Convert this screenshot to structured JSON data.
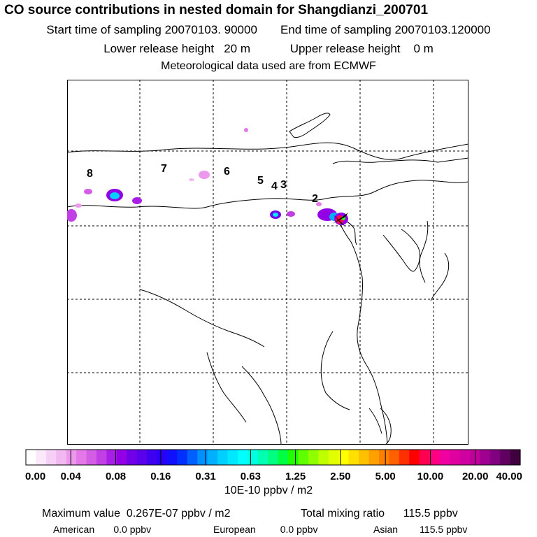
{
  "header": {
    "title": "CO  source contributions in nested domain for Shangdianzi_200701",
    "start_label": "Start time of sampling",
    "start_value": "20070103. 90000",
    "end_label": "End time of sampling",
    "end_value": "20070103.120000",
    "lower_label": "Lower release height",
    "lower_value": "20 m",
    "upper_label": "Upper release height",
    "upper_value": "0 m",
    "met": "Meteorological data used are from ECMWF"
  },
  "map": {
    "point_labels": [
      "2",
      "3",
      "4",
      "5",
      "6",
      "7",
      "8"
    ],
    "station": "Shangdianzi"
  },
  "colorbar": {
    "tick_labels": [
      "0.00",
      "0.04",
      "0.08",
      "0.16",
      "0.31",
      "0.63",
      "1.25",
      "2.50",
      "5.00",
      "10.00",
      "20.00",
      "40.00"
    ],
    "unit": "10E-10 ppbv / m2",
    "colors": [
      "#ffffff",
      "#fbe8fb",
      "#f7d0f7",
      "#f2b8f2",
      "#ec98ec",
      "#e478e8",
      "#d45de6",
      "#c040e6",
      "#a81ee6",
      "#9400e6",
      "#7000e8",
      "#5a00ea",
      "#4000f0",
      "#2a00f8",
      "#1010ff",
      "#0030ff",
      "#0060ff",
      "#0090ff",
      "#00b0ff",
      "#00d0ff",
      "#00e8ff",
      "#00ffff",
      "#00ffe0",
      "#00ffb0",
      "#00ff80",
      "#00ff40",
      "#20ff00",
      "#60ff00",
      "#90ff00",
      "#c0ff00",
      "#e0ff00",
      "#ffff00",
      "#ffe000",
      "#ffc000",
      "#ffa000",
      "#ff8000",
      "#ff6000",
      "#ff3000",
      "#ff0000",
      "#ff0050",
      "#ff0080",
      "#f000a0",
      "#e000a0",
      "#d000a0",
      "#c0009a",
      "#a00090",
      "#800080",
      "#600060",
      "#400040"
    ]
  },
  "stats": {
    "max_label": "Maximum value",
    "max_value": "0.267E-07 ppbv / m2",
    "total_label": "Total mixing ratio",
    "total_value": "115.5 ppbv",
    "american_label": "American",
    "american_value": "0.0 ppbv",
    "european_label": "European",
    "european_value": "0.0 ppbv",
    "asian_label": "Asian",
    "asian_value": "115.5 ppbv"
  }
}
